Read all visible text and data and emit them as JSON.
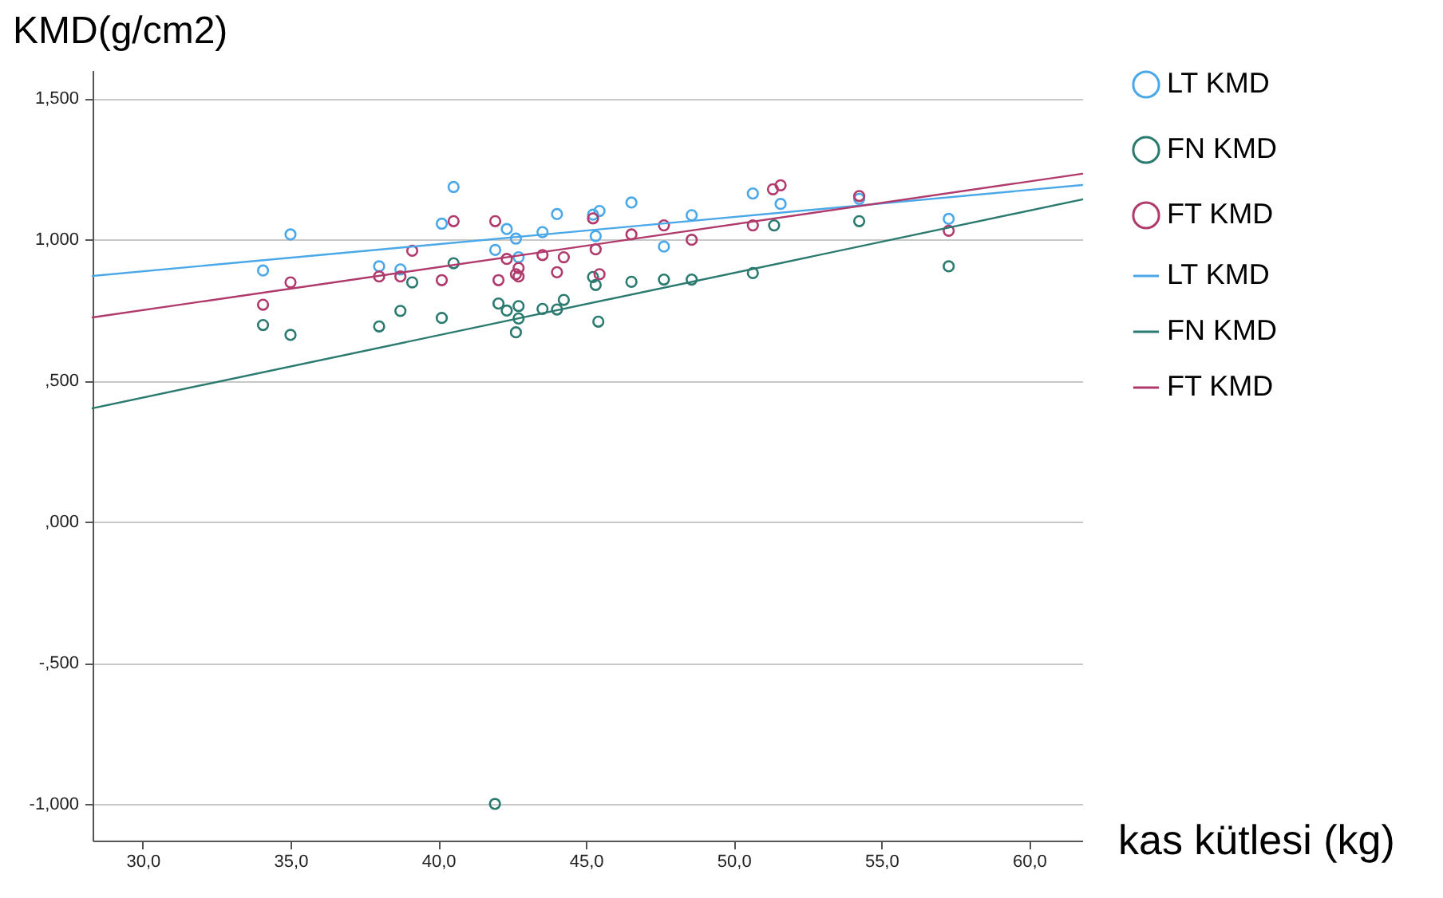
{
  "chart_data": {
    "type": "scatter",
    "title": "KMD(g/cm2)",
    "xlabel": "kas kütlesi (kg)",
    "xlim": [
      28.3,
      61.8
    ],
    "ylim": [
      -1130,
      1600
    ],
    "xticks": [
      {
        "value": 30,
        "label": "30,0"
      },
      {
        "value": 35,
        "label": "35,0"
      },
      {
        "value": 40,
        "label": "40,0"
      },
      {
        "value": 45,
        "label": "45,0"
      },
      {
        "value": 50,
        "label": "50,0"
      },
      {
        "value": 55,
        "label": "55,0"
      },
      {
        "value": 60,
        "label": "60,0"
      }
    ],
    "yticks": [
      {
        "value": -1000,
        "label": "-1,000"
      },
      {
        "value": -500,
        "label": "-,500"
      },
      {
        "value": 0,
        "label": ",000"
      },
      {
        "value": 500,
        "label": ",500"
      },
      {
        "value": 1000,
        "label": "1,000"
      },
      {
        "value": 1500,
        "label": "1,500"
      }
    ],
    "grid": "y",
    "legend": "right",
    "series": [
      {
        "name": "LT KMD",
        "color": "#4aa8e8",
        "marker": "circle",
        "x": [
          35.0,
          34.07,
          40.52,
          40.12,
          38.0,
          38.72,
          41.93,
          42.32,
          42.63,
          42.72,
          43.53,
          44.02,
          45.24,
          45.46,
          45.33,
          46.54,
          47.64,
          48.58,
          50.65,
          51.59,
          54.25,
          57.28
        ],
        "values": [
          1018,
          890,
          1186,
          1056,
          905,
          894,
          963,
          1037,
          1003,
          937,
          1026,
          1090,
          1088,
          1101,
          1012,
          1131,
          975,
          1086,
          1163,
          1126,
          1144,
          1073
        ]
      },
      {
        "name": "FN KMD",
        "color": "#2a7a70",
        "marker": "circle",
        "x": [
          34.07,
          35.0,
          38.0,
          38.72,
          39.12,
          40.12,
          40.52,
          42.04,
          42.32,
          42.72,
          42.72,
          42.63,
          43.53,
          44.02,
          44.25,
          45.24,
          45.33,
          45.42,
          46.54,
          47.64,
          48.58,
          50.65,
          51.37,
          54.25,
          57.28,
          41.92
        ],
        "values": [
          697,
          662,
          692,
          747,
          848,
          722,
          916,
          773,
          748,
          764,
          720,
          671,
          754,
          752,
          786,
          867,
          839,
          709,
          850,
          858,
          858,
          881,
          1050,
          1065,
          905,
          -1000
        ]
      },
      {
        "name": "FT KMD",
        "color": "#b03a6c",
        "marker": "circle",
        "x": [
          34.07,
          35.0,
          38.0,
          38.72,
          39.12,
          40.12,
          40.52,
          41.93,
          42.04,
          42.32,
          42.72,
          42.63,
          42.72,
          43.53,
          44.02,
          44.25,
          45.24,
          45.33,
          45.46,
          46.54,
          47.64,
          48.58,
          50.65,
          51.33,
          51.59,
          54.25,
          57.28
        ],
        "values": [
          769,
          848,
          869,
          869,
          960,
          856,
          1065,
          1065,
          856,
          931,
          899,
          877,
          869,
          945,
          884,
          937,
          1075,
          965,
          877,
          1018,
          1050,
          999,
          1050,
          1178,
          1192,
          1154,
          1031
        ]
      },
      {
        "name": "LT KMD",
        "type": "line",
        "marker": "none",
        "color": "#4aa8e8",
        "x": [
          28.3,
          61.8
        ],
        "values": [
          871,
          1193
        ]
      },
      {
        "name": "FN KMD",
        "type": "line",
        "marker": "none",
        "color": "#2a7a70",
        "x": [
          28.3,
          61.8
        ],
        "values": [
          402,
          1142
        ]
      },
      {
        "name": "FT KMD",
        "type": "line",
        "marker": "none",
        "color": "#b03a6c",
        "x": [
          28.3,
          61.8
        ],
        "values": [
          724,
          1233
        ]
      }
    ]
  }
}
